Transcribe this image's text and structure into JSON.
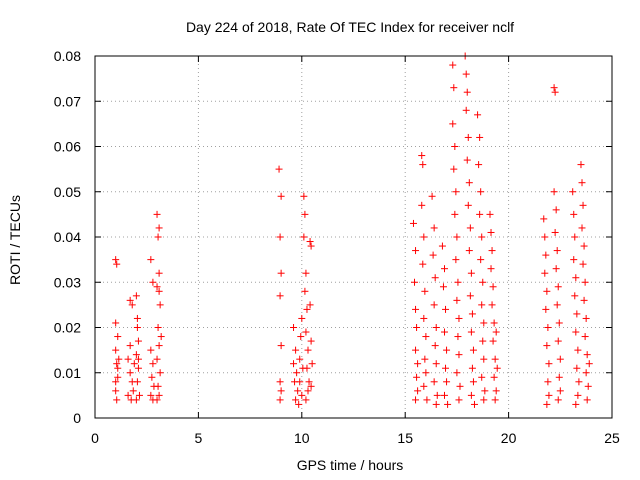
{
  "chart_data": {
    "type": "scatter",
    "title": "Day 224 of 2018, Rate Of TEC Index for receiver nclf",
    "xlabel": "GPS time / hours",
    "ylabel": "ROTI / TECUs",
    "xlim": [
      0,
      25
    ],
    "ylim": [
      0,
      0.08
    ],
    "xticks": [
      0,
      5,
      10,
      15,
      20,
      25
    ],
    "xtick_labels": [
      "0",
      "5",
      "10",
      "15",
      "20",
      "25"
    ],
    "yticks": [
      0,
      0.01,
      0.02,
      0.03,
      0.04,
      0.05,
      0.06,
      0.07,
      0.08
    ],
    "ytick_labels": [
      "0",
      "0.01",
      "0.02",
      "0.03",
      "0.04",
      "0.05",
      "0.06",
      "0.07",
      "0.08"
    ],
    "grid": true,
    "marker": "+",
    "color": "#ff0000",
    "series": [
      {
        "name": "ROTI",
        "points": [
          [
            1.0,
            0.035
          ],
          [
            1.05,
            0.034
          ],
          [
            1.0,
            0.021
          ],
          [
            1.1,
            0.018
          ],
          [
            1.0,
            0.015
          ],
          [
            1.05,
            0.012
          ],
          [
            1.1,
            0.009
          ],
          [
            1.0,
            0.006
          ],
          [
            1.05,
            0.004
          ],
          [
            1.1,
            0.011
          ],
          [
            1.0,
            0.008
          ],
          [
            1.15,
            0.013
          ],
          [
            1.6,
            0.013
          ],
          [
            1.7,
            0.01
          ],
          [
            1.8,
            0.008
          ],
          [
            1.6,
            0.005
          ],
          [
            1.75,
            0.004
          ],
          [
            1.9,
            0.012
          ],
          [
            1.7,
            0.016
          ],
          [
            1.8,
            0.025
          ],
          [
            1.7,
            0.026
          ],
          [
            1.85,
            0.006
          ],
          [
            2.0,
            0.027
          ],
          [
            2.05,
            0.02
          ],
          [
            2.1,
            0.017
          ],
          [
            2.0,
            0.014
          ],
          [
            2.1,
            0.011
          ],
          [
            2.05,
            0.008
          ],
          [
            2.15,
            0.005
          ],
          [
            2.0,
            0.004
          ],
          [
            2.1,
            0.013
          ],
          [
            2.05,
            0.022
          ],
          [
            2.7,
            0.035
          ],
          [
            2.8,
            0.03
          ],
          [
            2.7,
            0.015
          ],
          [
            2.8,
            0.012
          ],
          [
            2.75,
            0.009
          ],
          [
            2.85,
            0.007
          ],
          [
            2.7,
            0.005
          ],
          [
            2.8,
            0.004
          ],
          [
            3.0,
            0.045
          ],
          [
            3.1,
            0.042
          ],
          [
            3.05,
            0.04
          ],
          [
            3.1,
            0.032
          ],
          [
            3.0,
            0.029
          ],
          [
            3.15,
            0.025
          ],
          [
            3.05,
            0.02
          ],
          [
            3.1,
            0.016
          ],
          [
            3.0,
            0.013
          ],
          [
            3.15,
            0.01
          ],
          [
            3.05,
            0.007
          ],
          [
            3.1,
            0.005
          ],
          [
            3.0,
            0.004
          ],
          [
            3.2,
            0.018
          ],
          [
            3.1,
            0.028
          ],
          [
            8.9,
            0.055
          ],
          [
            9.0,
            0.049
          ],
          [
            8.95,
            0.04
          ],
          [
            9.0,
            0.032
          ],
          [
            8.95,
            0.027
          ],
          [
            9.0,
            0.016
          ],
          [
            8.95,
            0.008
          ],
          [
            9.0,
            0.006
          ],
          [
            8.95,
            0.004
          ],
          [
            9.6,
            0.02
          ],
          [
            9.7,
            0.015
          ],
          [
            9.6,
            0.012
          ],
          [
            9.75,
            0.01
          ],
          [
            9.65,
            0.008
          ],
          [
            9.8,
            0.006
          ],
          [
            9.7,
            0.004
          ],
          [
            9.85,
            0.003
          ],
          [
            9.9,
            0.013
          ],
          [
            9.95,
            0.018
          ],
          [
            10.0,
            0.022
          ],
          [
            10.05,
            0.011
          ],
          [
            10.0,
            0.005
          ],
          [
            9.9,
            0.008
          ],
          [
            10.1,
            0.049
          ],
          [
            10.15,
            0.045
          ],
          [
            10.1,
            0.04
          ],
          [
            10.2,
            0.032
          ],
          [
            10.15,
            0.028
          ],
          [
            10.25,
            0.024
          ],
          [
            10.2,
            0.019
          ],
          [
            10.3,
            0.015
          ],
          [
            10.25,
            0.011
          ],
          [
            10.35,
            0.008
          ],
          [
            10.3,
            0.006
          ],
          [
            10.2,
            0.004
          ],
          [
            10.4,
            0.039
          ],
          [
            10.45,
            0.038
          ],
          [
            10.4,
            0.025
          ],
          [
            10.45,
            0.017
          ],
          [
            10.5,
            0.012
          ],
          [
            10.45,
            0.007
          ],
          [
            15.4,
            0.043
          ],
          [
            15.5,
            0.037
          ],
          [
            15.45,
            0.03
          ],
          [
            15.5,
            0.024
          ],
          [
            15.55,
            0.02
          ],
          [
            15.5,
            0.015
          ],
          [
            15.6,
            0.012
          ],
          [
            15.55,
            0.009
          ],
          [
            15.6,
            0.006
          ],
          [
            15.5,
            0.004
          ],
          [
            15.8,
            0.058
          ],
          [
            15.85,
            0.056
          ],
          [
            15.8,
            0.047
          ],
          [
            15.9,
            0.04
          ],
          [
            15.85,
            0.034
          ],
          [
            15.95,
            0.028
          ],
          [
            15.9,
            0.022
          ],
          [
            16.0,
            0.018
          ],
          [
            15.95,
            0.013
          ],
          [
            16.0,
            0.01
          ],
          [
            15.9,
            0.007
          ],
          [
            16.05,
            0.004
          ],
          [
            16.3,
            0.049
          ],
          [
            16.4,
            0.042
          ],
          [
            16.35,
            0.036
          ],
          [
            16.45,
            0.031
          ],
          [
            16.4,
            0.025
          ],
          [
            16.5,
            0.02
          ],
          [
            16.45,
            0.016
          ],
          [
            16.5,
            0.012
          ],
          [
            16.4,
            0.008
          ],
          [
            16.55,
            0.005
          ],
          [
            16.5,
            0.003
          ],
          [
            16.8,
            0.038
          ],
          [
            16.9,
            0.033
          ],
          [
            16.85,
            0.029
          ],
          [
            16.95,
            0.024
          ],
          [
            16.9,
            0.019
          ],
          [
            17.0,
            0.015
          ],
          [
            16.95,
            0.011
          ],
          [
            17.0,
            0.008
          ],
          [
            16.9,
            0.005
          ],
          [
            17.05,
            0.003
          ],
          [
            17.3,
            0.078
          ],
          [
            17.35,
            0.073
          ],
          [
            17.3,
            0.065
          ],
          [
            17.4,
            0.06
          ],
          [
            17.35,
            0.055
          ],
          [
            17.45,
            0.05
          ],
          [
            17.4,
            0.045
          ],
          [
            17.5,
            0.04
          ],
          [
            17.45,
            0.035
          ],
          [
            17.55,
            0.03
          ],
          [
            17.5,
            0.026
          ],
          [
            17.6,
            0.022
          ],
          [
            17.55,
            0.018
          ],
          [
            17.6,
            0.014
          ],
          [
            17.5,
            0.01
          ],
          [
            17.65,
            0.007
          ],
          [
            17.6,
            0.004
          ],
          [
            17.9,
            0.08
          ],
          [
            17.95,
            0.076
          ],
          [
            18.0,
            0.072
          ],
          [
            17.95,
            0.068
          ],
          [
            18.05,
            0.062
          ],
          [
            18.0,
            0.057
          ],
          [
            18.1,
            0.052
          ],
          [
            18.05,
            0.047
          ],
          [
            18.15,
            0.042
          ],
          [
            18.1,
            0.037
          ],
          [
            18.2,
            0.032
          ],
          [
            18.15,
            0.027
          ],
          [
            18.25,
            0.023
          ],
          [
            18.2,
            0.019
          ],
          [
            18.3,
            0.015
          ],
          [
            18.25,
            0.011
          ],
          [
            18.3,
            0.008
          ],
          [
            18.2,
            0.005
          ],
          [
            18.35,
            0.003
          ],
          [
            18.5,
            0.067
          ],
          [
            18.6,
            0.062
          ],
          [
            18.55,
            0.056
          ],
          [
            18.65,
            0.05
          ],
          [
            18.6,
            0.045
          ],
          [
            18.7,
            0.04
          ],
          [
            18.65,
            0.035
          ],
          [
            18.75,
            0.03
          ],
          [
            18.7,
            0.025
          ],
          [
            18.8,
            0.021
          ],
          [
            18.75,
            0.017
          ],
          [
            18.8,
            0.013
          ],
          [
            18.7,
            0.009
          ],
          [
            18.85,
            0.006
          ],
          [
            18.8,
            0.004
          ],
          [
            19.1,
            0.045
          ],
          [
            19.15,
            0.041
          ],
          [
            19.2,
            0.037
          ],
          [
            19.15,
            0.033
          ],
          [
            19.25,
            0.029
          ],
          [
            19.2,
            0.025
          ],
          [
            19.3,
            0.021
          ],
          [
            19.25,
            0.017
          ],
          [
            19.35,
            0.013
          ],
          [
            19.3,
            0.009
          ],
          [
            19.4,
            0.006
          ],
          [
            19.35,
            0.004
          ],
          [
            19.45,
            0.011
          ],
          [
            19.4,
            0.019
          ],
          [
            21.7,
            0.044
          ],
          [
            21.75,
            0.04
          ],
          [
            21.8,
            0.036
          ],
          [
            21.75,
            0.032
          ],
          [
            21.85,
            0.028
          ],
          [
            21.8,
            0.024
          ],
          [
            21.9,
            0.02
          ],
          [
            21.85,
            0.016
          ],
          [
            21.95,
            0.012
          ],
          [
            21.9,
            0.008
          ],
          [
            21.95,
            0.005
          ],
          [
            21.85,
            0.003
          ],
          [
            22.2,
            0.073
          ],
          [
            22.25,
            0.072
          ],
          [
            22.2,
            0.05
          ],
          [
            22.3,
            0.046
          ],
          [
            22.25,
            0.041
          ],
          [
            22.35,
            0.037
          ],
          [
            22.3,
            0.033
          ],
          [
            22.4,
            0.029
          ],
          [
            22.35,
            0.025
          ],
          [
            22.45,
            0.021
          ],
          [
            22.4,
            0.017
          ],
          [
            22.5,
            0.013
          ],
          [
            22.45,
            0.009
          ],
          [
            22.5,
            0.006
          ],
          [
            22.4,
            0.004
          ],
          [
            23.1,
            0.05
          ],
          [
            23.15,
            0.045
          ],
          [
            23.2,
            0.04
          ],
          [
            23.15,
            0.035
          ],
          [
            23.25,
            0.031
          ],
          [
            23.2,
            0.027
          ],
          [
            23.3,
            0.023
          ],
          [
            23.25,
            0.019
          ],
          [
            23.35,
            0.015
          ],
          [
            23.3,
            0.011
          ],
          [
            23.4,
            0.008
          ],
          [
            23.35,
            0.005
          ],
          [
            23.25,
            0.003
          ],
          [
            23.5,
            0.056
          ],
          [
            23.55,
            0.052
          ],
          [
            23.6,
            0.047
          ],
          [
            23.55,
            0.042
          ],
          [
            23.65,
            0.038
          ],
          [
            23.6,
            0.034
          ],
          [
            23.7,
            0.03
          ],
          [
            23.65,
            0.026
          ],
          [
            23.75,
            0.022
          ],
          [
            23.7,
            0.018
          ],
          [
            23.8,
            0.014
          ],
          [
            23.75,
            0.01
          ],
          [
            23.85,
            0.007
          ],
          [
            23.8,
            0.004
          ],
          [
            23.9,
            0.012
          ]
        ]
      }
    ]
  }
}
